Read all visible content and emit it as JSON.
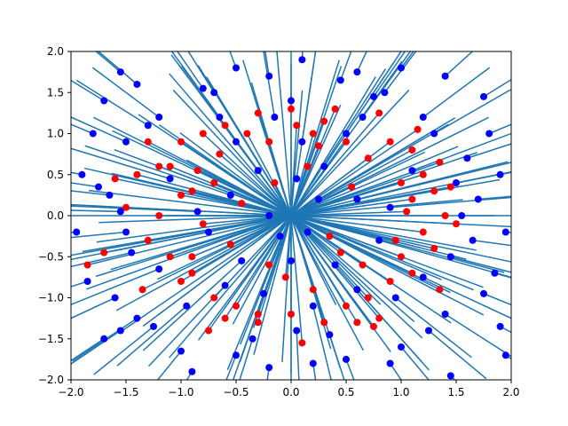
{
  "chart_data": {
    "type": "scatter",
    "title": "",
    "xlabel": "",
    "ylabel": "",
    "xlim": [
      -2,
      2
    ],
    "ylim": [
      -2,
      2
    ],
    "grid": false,
    "x_ticks": [
      "−2.0",
      "−1.5",
      "−1.0",
      "−0.5",
      "0.0",
      "0.5",
      "1.0",
      "1.5",
      "2.0"
    ],
    "y_ticks": [
      "−2.0",
      "−1.5",
      "−1.0",
      "−0.5",
      "0.0",
      "0.5",
      "1.0",
      "1.5",
      "2.0"
    ],
    "x_tick_values": [
      -2,
      -1.5,
      -1,
      -0.5,
      0,
      0.5,
      1,
      1.5,
      2
    ],
    "y_tick_values": [
      -2,
      -1.5,
      -1,
      -0.5,
      0,
      0.5,
      1,
      1.5,
      2
    ],
    "colors": {
      "red": "#ff0000",
      "blue": "#0000ff",
      "line": "#1f77b4"
    },
    "series": [
      {
        "color": "red",
        "points": [
          [
            -0.3,
            1.25
          ],
          [
            0.0,
            1.3
          ],
          [
            0.4,
            1.3
          ],
          [
            0.8,
            1.25
          ],
          [
            -0.8,
            1.0
          ],
          [
            -1.0,
            0.9
          ],
          [
            -0.6,
            1.1
          ],
          [
            0.2,
            1.0
          ],
          [
            -0.2,
            0.9
          ],
          [
            0.5,
            0.9
          ],
          [
            0.9,
            0.9
          ],
          [
            1.1,
            0.8
          ],
          [
            -1.2,
            0.6
          ],
          [
            -1.4,
            0.5
          ],
          [
            -0.7,
            0.4
          ],
          [
            -0.9,
            0.3
          ],
          [
            1.2,
            0.5
          ],
          [
            1.0,
            0.4
          ],
          [
            1.3,
            0.3
          ],
          [
            1.1,
            0.2
          ],
          [
            -1.5,
            0.1
          ],
          [
            -1.2,
            0.0
          ],
          [
            -0.8,
            -0.1
          ],
          [
            1.4,
            0.0
          ],
          [
            1.5,
            -0.1
          ],
          [
            1.2,
            -0.2
          ],
          [
            -1.3,
            -0.3
          ],
          [
            -1.1,
            -0.5
          ],
          [
            1.3,
            -0.4
          ],
          [
            1.0,
            -0.5
          ],
          [
            -0.9,
            -0.7
          ],
          [
            -1.0,
            -0.8
          ],
          [
            0.9,
            -0.8
          ],
          [
            1.1,
            -0.7
          ],
          [
            -0.7,
            -1.0
          ],
          [
            -0.5,
            -1.1
          ],
          [
            0.5,
            -1.1
          ],
          [
            0.7,
            -1.0
          ],
          [
            -0.3,
            -1.3
          ],
          [
            0.0,
            -1.2
          ],
          [
            0.3,
            -1.3
          ],
          [
            -0.6,
            -1.25
          ],
          [
            0.6,
            -1.3
          ],
          [
            0.8,
            -1.25
          ],
          [
            -1.85,
            -0.6
          ],
          [
            -1.6,
            0.45
          ],
          [
            -1.7,
            -0.45
          ],
          [
            -1.1,
            0.6
          ],
          [
            -0.4,
            1.0
          ],
          [
            0.3,
            1.15
          ],
          [
            0.7,
            0.7
          ],
          [
            -0.2,
            -0.6
          ],
          [
            0.2,
            -0.9
          ],
          [
            -0.3,
            -1.2
          ],
          [
            0.1,
            -1.55
          ],
          [
            -0.45,
            0.15
          ],
          [
            0.35,
            -0.25
          ],
          [
            1.35,
            0.65
          ],
          [
            -0.9,
            -0.5
          ],
          [
            0.95,
            -0.3
          ],
          [
            -0.15,
            0.4
          ],
          [
            0.15,
            0.6
          ],
          [
            0.55,
            0.35
          ],
          [
            -1.3,
            0.9
          ],
          [
            1.35,
            -0.9
          ],
          [
            -1.35,
            -0.9
          ],
          [
            0.65,
            -0.6
          ],
          [
            -0.65,
            0.75
          ],
          [
            1.15,
            1.05
          ],
          [
            -0.55,
            -0.35
          ],
          [
            0.45,
            -0.45
          ],
          [
            -1.0,
            0.25
          ],
          [
            1.05,
            0.05
          ],
          [
            -0.05,
            -0.75
          ],
          [
            0.25,
            0.85
          ],
          [
            -0.85,
            0.55
          ],
          [
            0.75,
            -1.35
          ],
          [
            -0.75,
            -1.4
          ],
          [
            0.05,
            1.1
          ],
          [
            1.45,
            0.35
          ]
        ]
      },
      {
        "color": "blue",
        "points": [
          [
            0.1,
            1.9
          ],
          [
            -0.5,
            1.8
          ],
          [
            0.6,
            1.75
          ],
          [
            1.0,
            1.8
          ],
          [
            -1.4,
            1.6
          ],
          [
            -1.55,
            1.75
          ],
          [
            1.4,
            1.7
          ],
          [
            -0.2,
            1.7
          ],
          [
            0.45,
            1.65
          ],
          [
            -0.8,
            1.55
          ],
          [
            0.85,
            1.5
          ],
          [
            -1.7,
            1.4
          ],
          [
            1.75,
            1.45
          ],
          [
            -1.2,
            1.2
          ],
          [
            1.2,
            1.2
          ],
          [
            -1.8,
            1.0
          ],
          [
            1.8,
            1.0
          ],
          [
            -1.5,
            0.9
          ],
          [
            1.6,
            0.7
          ],
          [
            -1.9,
            0.5
          ],
          [
            1.9,
            0.5
          ],
          [
            -1.75,
            0.35
          ],
          [
            1.7,
            0.2
          ],
          [
            -1.55,
            0.05
          ],
          [
            1.55,
            0.0
          ],
          [
            -1.95,
            -0.2
          ],
          [
            1.95,
            -0.2
          ],
          [
            -1.45,
            -0.45
          ],
          [
            1.45,
            -0.5
          ],
          [
            -1.85,
            -0.8
          ],
          [
            1.85,
            -0.7
          ],
          [
            -1.6,
            -1.0
          ],
          [
            1.75,
            -0.95
          ],
          [
            -1.4,
            -1.25
          ],
          [
            1.4,
            -1.2
          ],
          [
            -1.7,
            -1.5
          ],
          [
            1.9,
            -1.35
          ],
          [
            -1.0,
            -1.65
          ],
          [
            1.0,
            -1.6
          ],
          [
            -0.5,
            -1.7
          ],
          [
            0.5,
            -1.75
          ],
          [
            -0.9,
            -1.9
          ],
          [
            0.9,
            -1.8
          ],
          [
            -0.2,
            -1.85
          ],
          [
            0.2,
            -1.8
          ],
          [
            1.45,
            -1.95
          ],
          [
            1.95,
            -1.7
          ],
          [
            -1.55,
            -1.4
          ],
          [
            0.65,
            1.2
          ],
          [
            -0.65,
            1.2
          ],
          [
            0.3,
            0.6
          ],
          [
            -0.3,
            0.55
          ],
          [
            0.6,
            0.2
          ],
          [
            -0.55,
            0.25
          ],
          [
            0.15,
            -0.2
          ],
          [
            -0.1,
            -0.25
          ],
          [
            0.4,
            -0.6
          ],
          [
            -0.45,
            -0.55
          ],
          [
            0.8,
            -0.3
          ],
          [
            -0.75,
            -0.2
          ],
          [
            0.25,
            0.2
          ],
          [
            -0.2,
            0.0
          ],
          [
            0.05,
            0.45
          ],
          [
            0.0,
            -0.55
          ],
          [
            1.1,
            0.55
          ],
          [
            -1.1,
            0.45
          ],
          [
            0.95,
            -1.0
          ],
          [
            -0.95,
            -1.1
          ],
          [
            1.3,
            1.0
          ],
          [
            -1.3,
            1.1
          ],
          [
            0.75,
            1.45
          ],
          [
            -0.7,
            1.5
          ],
          [
            1.25,
            -1.4
          ],
          [
            -1.25,
            -1.35
          ],
          [
            0.35,
            -1.45
          ],
          [
            -0.35,
            -1.5
          ],
          [
            0.5,
            1.0
          ],
          [
            -0.5,
            0.9
          ],
          [
            1.5,
            0.4
          ],
          [
            -1.5,
            -0.2
          ],
          [
            0.1,
            0.9
          ],
          [
            -0.15,
            1.2
          ],
          [
            0.9,
            0.1
          ],
          [
            -0.85,
            0.05
          ],
          [
            0.6,
            -0.9
          ],
          [
            -0.6,
            -0.85
          ],
          [
            1.65,
            -0.3
          ],
          [
            -1.65,
            0.25
          ],
          [
            0.2,
            -1.1
          ],
          [
            -0.25,
            -0.95
          ],
          [
            0.0,
            1.4
          ],
          [
            0.05,
            -1.4
          ],
          [
            1.2,
            -0.75
          ],
          [
            -1.2,
            -0.65
          ]
        ]
      }
    ]
  }
}
